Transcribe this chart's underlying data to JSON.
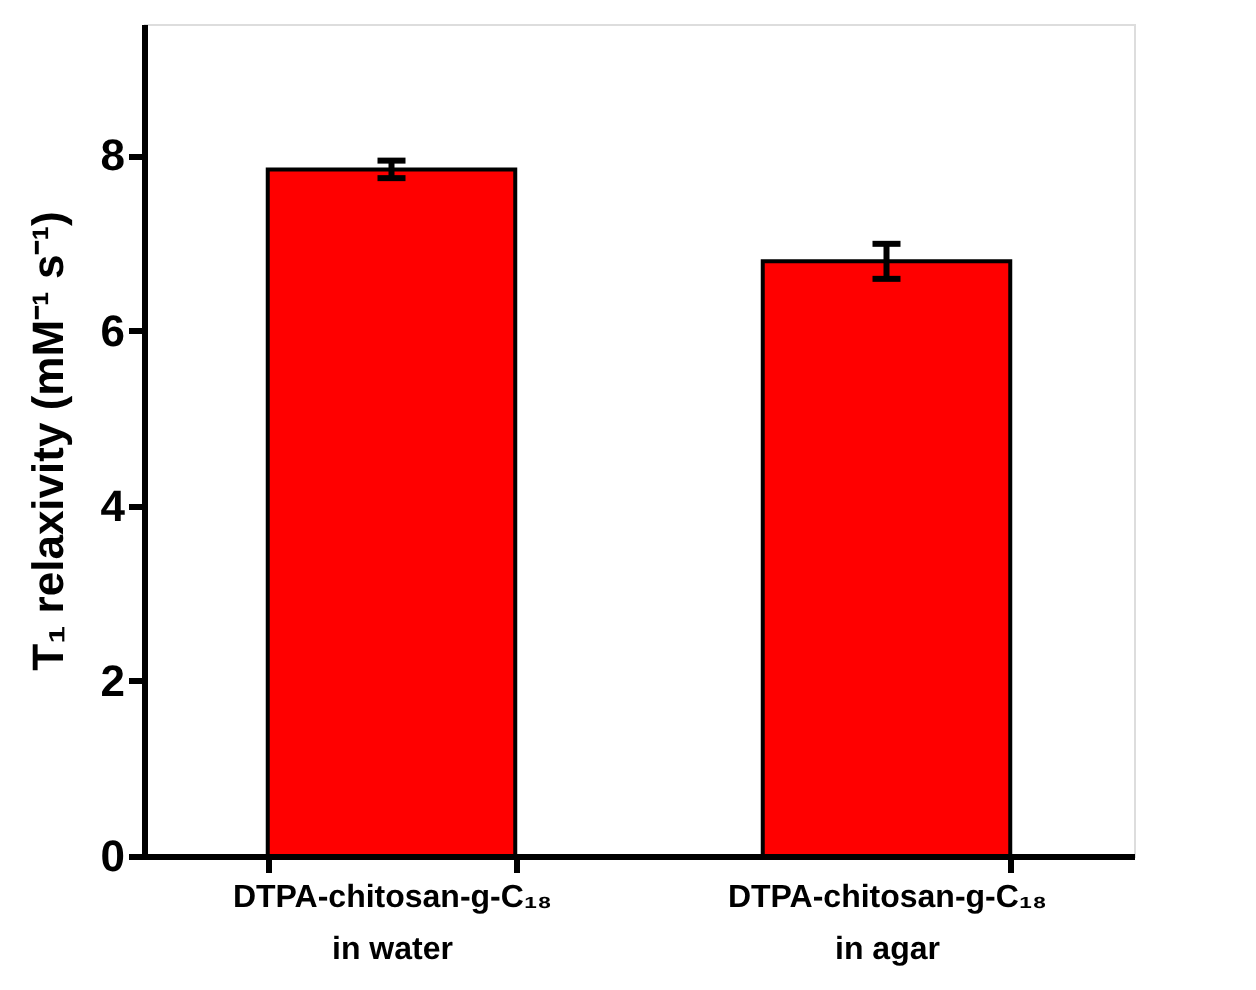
{
  "chart_data": {
    "type": "bar",
    "ylabel": "T₁ relaxivity (mM⁻¹ s⁻¹)",
    "categories": [
      "DTPA-chitosan-g-C₁₈\nin water",
      "DTPA-chitosan-g-C₁₈\nin agar"
    ],
    "values": [
      7.84,
      6.79
    ],
    "errors": [
      0.1,
      0.2
    ],
    "color": "#ff0000",
    "ylim": [
      0,
      9.5
    ],
    "yticks": [
      0,
      2,
      4,
      6,
      8
    ],
    "grid": false
  }
}
